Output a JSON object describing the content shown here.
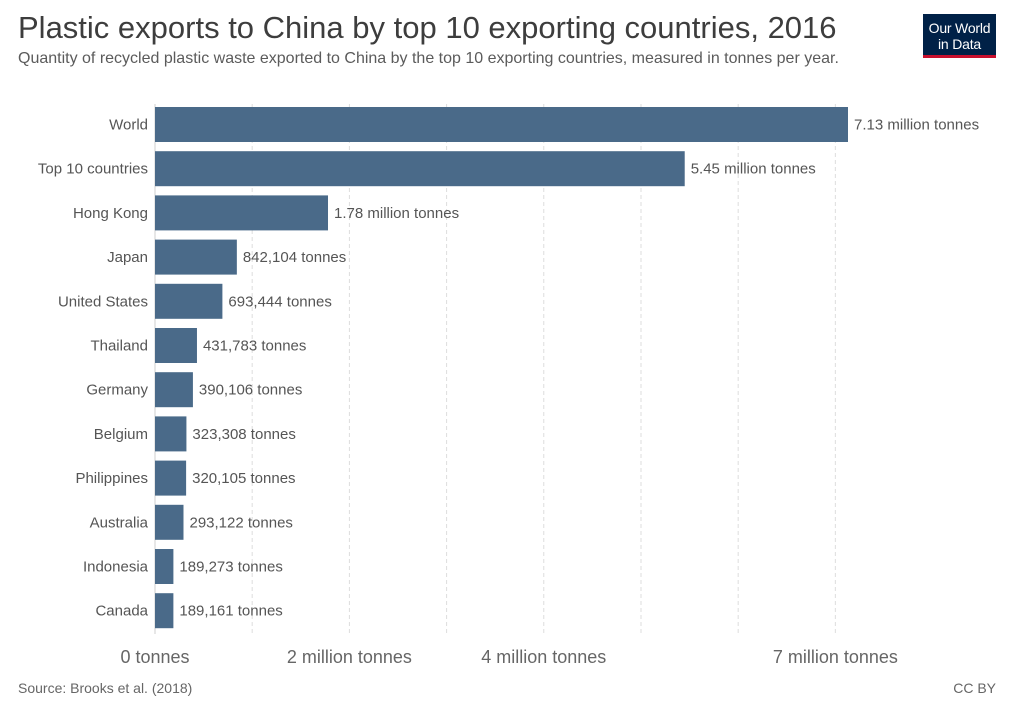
{
  "header": {
    "title": "Plastic exports to China by top 10 exporting countries, 2016",
    "subtitle": "Quantity of recycled plastic waste exported to China by the top 10 exporting countries, measured in tonnes per year.",
    "logo_line1": "Our World",
    "logo_line2": "in Data"
  },
  "footer": {
    "source": "Source: Brooks et al. (2018)",
    "license": "CC BY"
  },
  "colors": {
    "bar": "#4a6a89",
    "grid": "#dddddd",
    "logo_bg": "#002147",
    "logo_accent": "#c8102e"
  },
  "chart_data": {
    "type": "bar",
    "orientation": "horizontal",
    "categories": [
      "World",
      "Top 10 countries",
      "Hong Kong",
      "Japan",
      "United States",
      "Thailand",
      "Germany",
      "Belgium",
      "Philippines",
      "Australia",
      "Indonesia",
      "Canada"
    ],
    "values": [
      7130000,
      5450000,
      1780000,
      842104,
      693444,
      431783,
      390106,
      323308,
      320105,
      293122,
      189273,
      189161
    ],
    "value_labels": [
      "7.13 million tonnes",
      "5.45 million tonnes",
      "1.78 million tonnes",
      "842,104 tonnes",
      "693,444 tonnes",
      "431,783 tonnes",
      "390,106 tonnes",
      "323,308 tonnes",
      "320,105 tonnes",
      "293,122 tonnes",
      "189,273 tonnes",
      "189,161 tonnes"
    ],
    "x_ticks": [
      {
        "value": 0,
        "label": "0 tonnes"
      },
      {
        "value": 2000000,
        "label": "2 million tonnes"
      },
      {
        "value": 4000000,
        "label": "4 million tonnes"
      },
      {
        "value": 7000000,
        "label": "7 million tonnes"
      }
    ],
    "gridlines": [
      1000000,
      2000000,
      3000000,
      4000000,
      5000000,
      6000000,
      7000000
    ],
    "xlim": [
      0,
      7130000
    ],
    "grid": true
  }
}
